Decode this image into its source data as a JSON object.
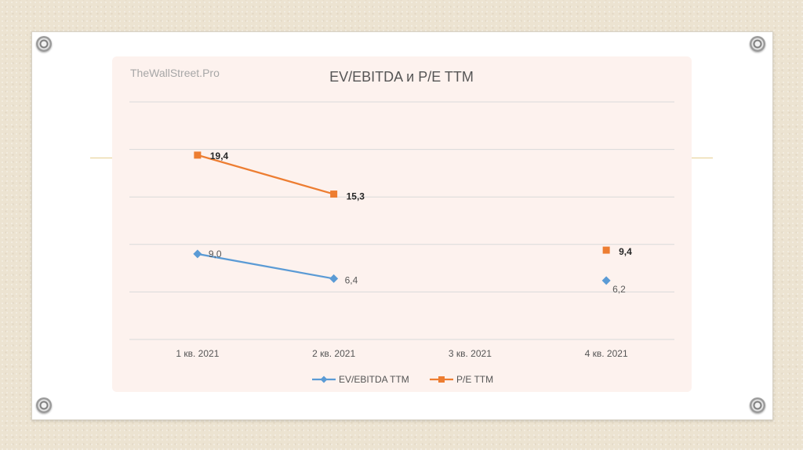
{
  "watermark": "TheWallStreet.Pro",
  "colors": {
    "ev": "#5b9bd5",
    "pe": "#ed7d31",
    "grid": "#d9d9d9"
  },
  "chart_data": {
    "type": "line",
    "title": "EV/EBITDA и P/E TTM",
    "categories": [
      "1 кв. 2021",
      "2 кв. 2021",
      "3 кв. 2021",
      "4 кв. 2021"
    ],
    "ylim": [
      0,
      25
    ],
    "grid": true,
    "legend": "bottom",
    "series": [
      {
        "name": "EV/EBITDA TTM",
        "values": [
          9.0,
          6.4,
          null,
          6.2
        ],
        "labels": [
          "9,0",
          "6,4",
          "",
          "6,2"
        ],
        "marker": "diamond"
      },
      {
        "name": "P/E TTM",
        "values": [
          19.4,
          15.3,
          null,
          9.4
        ],
        "labels": [
          "19,4",
          "15,3",
          "",
          "9,4"
        ],
        "marker": "square"
      }
    ]
  }
}
